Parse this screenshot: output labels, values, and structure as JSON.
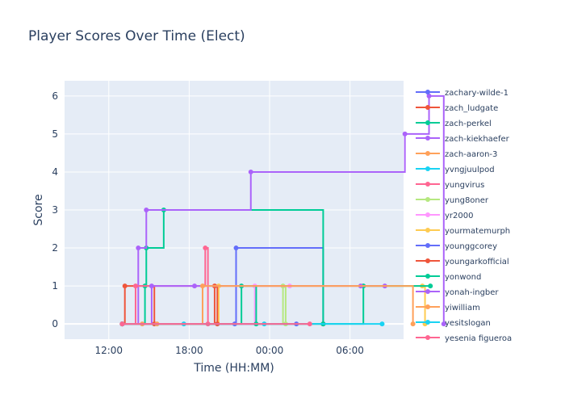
{
  "chart_data": {
    "type": "line",
    "line_shape": "step",
    "title": "Player Scores Over Time (Elect)",
    "xlabel": "Time (HH:MM)",
    "ylabel": "Score",
    "x_ticks": [
      "18:00",
      "00:00",
      "06:00",
      "12:00"
    ],
    "y_ticks": [
      "0",
      "1",
      "2",
      "3",
      "4",
      "5",
      "6"
    ],
    "xlim_hours": [
      8.7,
      34.0
    ],
    "ylim": [
      -0.4,
      6.4
    ],
    "grid": true,
    "legend_position": "right",
    "series": [
      {
        "name": "zachary-wilde-1",
        "color": "#636efa",
        "x": [
          13.0,
          21.4,
          21.5,
          28.0
        ],
        "y": [
          0,
          0,
          2,
          0
        ]
      },
      {
        "name": "zach_ludgate",
        "color": "#ef553b",
        "x": [
          13.0,
          13.2,
          15.4,
          28.0
        ],
        "y": [
          0,
          1,
          0,
          0
        ]
      },
      {
        "name": "zach-perkel",
        "color": "#00cc96",
        "x": [
          13.0,
          14.7,
          14.8,
          16.1,
          28.0
        ],
        "y": [
          0,
          1,
          2,
          3,
          0
        ]
      },
      {
        "name": "zach-kiekhaefer",
        "color": "#ab63fa",
        "x": [
          13.0,
          14.2,
          14.8,
          22.6,
          34.1,
          35.9,
          37.0
        ],
        "y": [
          0,
          2,
          3,
          4,
          5,
          6,
          0
        ]
      },
      {
        "name": "zach-aaron-3",
        "color": "#ffa15a",
        "x": [
          13.0,
          14.5,
          15.6
        ],
        "y": [
          0,
          0,
          0
        ]
      },
      {
        "name": "yvngjuulpod",
        "color": "#19d3f3",
        "x": [
          13.0,
          17.6,
          23.6
        ],
        "y": [
          0,
          0,
          0
        ]
      },
      {
        "name": "yungvirus",
        "color": "#ff6692",
        "x": [
          13.0,
          14.0,
          19.2,
          19.4
        ],
        "y": [
          0,
          1,
          2,
          0
        ]
      },
      {
        "name": "yung8oner",
        "color": "#b6e880",
        "x": [
          13.0,
          25.0,
          25.2
        ],
        "y": [
          0,
          1,
          0
        ]
      },
      {
        "name": "yr2000",
        "color": "#ff97ff",
        "x": [
          13.0,
          22.9,
          25.5
        ],
        "y": [
          0,
          1,
          1
        ]
      },
      {
        "name": "yourmatemurph",
        "color": "#fecb52",
        "x": [
          13.0,
          20.2,
          35.4,
          35.6
        ],
        "y": [
          0,
          1,
          1,
          0
        ]
      },
      {
        "name": "younggcorey",
        "color": "#636efa",
        "x": [
          13.0,
          26.0
        ],
        "y": [
          0,
          0
        ]
      },
      {
        "name": "youngarkofficial",
        "color": "#ef553b",
        "x": [
          13.0,
          19.9,
          20.1
        ],
        "y": [
          0,
          1,
          0
        ]
      },
      {
        "name": "yonwond",
        "color": "#00cc96",
        "x": [
          13.0,
          21.9,
          23.0,
          31.0,
          36.0
        ],
        "y": [
          0,
          1,
          0,
          1,
          1
        ]
      },
      {
        "name": "yonah-ingber",
        "color": "#ab63fa",
        "x": [
          13.0,
          15.2,
          18.4,
          30.8,
          32.6
        ],
        "y": [
          0,
          1,
          1,
          1,
          1
        ]
      },
      {
        "name": "yiwilliam",
        "color": "#ffa15a",
        "x": [
          13.0,
          19.0,
          34.7
        ],
        "y": [
          0,
          1,
          0
        ]
      },
      {
        "name": "yesitslogan",
        "color": "#19d3f3",
        "x": [
          13.0,
          32.4
        ],
        "y": [
          0,
          0
        ]
      },
      {
        "name": "yesenia figueroa",
        "color": "#ff6692",
        "x": [
          13.0,
          27.0
        ],
        "y": [
          0,
          0
        ]
      }
    ]
  }
}
